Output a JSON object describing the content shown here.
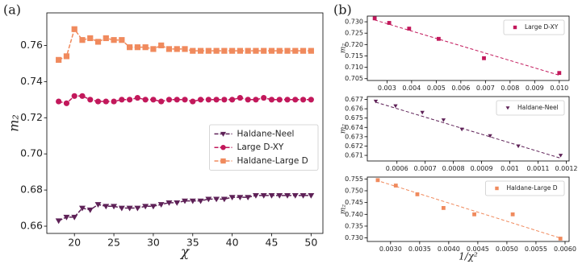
{
  "chart_data": [
    {
      "type": "line",
      "panel_label": "(a)",
      "x_label": "χ",
      "y_label": "m₂",
      "legend": "center right",
      "x": [
        18,
        19,
        20,
        21,
        22,
        23,
        24,
        25,
        26,
        27,
        28,
        29,
        30,
        31,
        32,
        33,
        34,
        35,
        36,
        37,
        38,
        39,
        40,
        41,
        42,
        43,
        44,
        45,
        46,
        47,
        48,
        49,
        50
      ],
      "series": [
        {
          "name": "Haldane-Neel",
          "color": "#5e2157",
          "marker": "triangle-down",
          "values": [
            0.663,
            0.665,
            0.665,
            0.67,
            0.669,
            0.672,
            0.671,
            0.671,
            0.67,
            0.67,
            0.67,
            0.671,
            0.671,
            0.672,
            0.673,
            0.673,
            0.674,
            0.674,
            0.674,
            0.675,
            0.675,
            0.675,
            0.676,
            0.676,
            0.676,
            0.677,
            0.677,
            0.677,
            0.677,
            0.677,
            0.677,
            0.677,
            0.677
          ]
        },
        {
          "name": "Large D-XY",
          "color": "#c2185b",
          "marker": "circle",
          "values": [
            0.729,
            0.728,
            0.732,
            0.732,
            0.73,
            0.729,
            0.729,
            0.729,
            0.73,
            0.73,
            0.731,
            0.73,
            0.73,
            0.729,
            0.73,
            0.73,
            0.73,
            0.729,
            0.73,
            0.73,
            0.73,
            0.73,
            0.73,
            0.731,
            0.73,
            0.73,
            0.731,
            0.73,
            0.73,
            0.73,
            0.73,
            0.73,
            0.73
          ]
        },
        {
          "name": "Haldane-Large D",
          "color": "#f08a5d",
          "marker": "square",
          "values": [
            0.752,
            0.754,
            0.769,
            0.763,
            0.764,
            0.762,
            0.764,
            0.763,
            0.763,
            0.759,
            0.759,
            0.759,
            0.758,
            0.76,
            0.758,
            0.758,
            0.758,
            0.757,
            0.757,
            0.757,
            0.757,
            0.757,
            0.757,
            0.757,
            0.757,
            0.757,
            0.757,
            0.757,
            0.757,
            0.757,
            0.757,
            0.757,
            0.757
          ]
        }
      ],
      "xlim": [
        16.5,
        51.5
      ],
      "xticks": [
        20,
        25,
        30,
        35,
        40,
        45,
        50
      ],
      "ylim": [
        0.656,
        0.778
      ],
      "yticks": [
        0.66,
        0.68,
        {
          "value": 0.7,
          "label": "0.70"
        },
        0.72,
        0.74,
        0.76
      ]
    },
    {
      "type": "scatter",
      "panel_label": "(b)",
      "y_label": "m₂",
      "legend": "upper right",
      "x": [
        0.0025,
        0.00309,
        0.0039,
        0.0051,
        0.00694,
        0.01
      ],
      "series": [
        {
          "name": "Large D-XY",
          "color": "#c2185b",
          "marker": "square",
          "values": [
            0.7315,
            0.7295,
            0.727,
            0.7225,
            0.714,
            0.7075
          ]
        }
      ],
      "fit": {
        "color": "#c2185b",
        "x": [
          0.0025,
          0.01
        ],
        "values": [
          0.7308,
          0.7065
        ]
      },
      "xlim": [
        0.0022,
        0.0104
      ],
      "xticks": [
        0.003,
        0.004,
        0.005,
        0.006,
        0.007,
        0.008,
        0.009,
        {
          "value": 0.01,
          "label": "0.010"
        }
      ],
      "ylim": [
        0.7042,
        0.7325
      ],
      "yticks": [
        0.705,
        {
          "value": 0.71,
          "label": "0.710"
        },
        0.715,
        {
          "value": 0.72,
          "label": "0.720"
        },
        0.725,
        {
          "value": 0.73,
          "label": "0.730"
        }
      ]
    },
    {
      "type": "scatter",
      "y_label": "m₂",
      "legend": "upper right",
      "x": [
        0.000525,
        0.000595,
        0.00069,
        0.000765,
        0.00083,
        0.00093,
        0.00103,
        0.00118
      ],
      "series": [
        {
          "name": "Haldane-Neel",
          "color": "#5e2157",
          "marker": "triangle-down",
          "values": [
            0.6768,
            0.6763,
            0.6756,
            0.6748,
            0.6738,
            0.6731,
            0.672,
            0.671
          ]
        }
      ],
      "fit": {
        "color": "#5e2157",
        "x": [
          0.000525,
          0.00118
        ],
        "values": [
          0.6767,
          0.6707
        ]
      },
      "xlim": [
        0.000495,
        0.00121
      ],
      "xticks": [
        0.0006,
        0.0007,
        0.0008,
        0.0009,
        0.001,
        0.0011,
        0.0012
      ],
      "ylim": [
        0.6704,
        0.6773
      ],
      "yticks": [
        0.671,
        0.672,
        0.673,
        0.674,
        0.675,
        0.676,
        0.677
      ]
    },
    {
      "type": "scatter",
      "x_label": "1/χ²",
      "y_label": "m₂",
      "legend": "upper right",
      "x": [
        0.00278,
        0.00309,
        0.00346,
        0.00391,
        0.00444,
        0.0051,
        0.00592
      ],
      "series": [
        {
          "name": "Haldane-Large D",
          "color": "#f08a5d",
          "marker": "square",
          "values": [
            0.7545,
            0.7522,
            0.7485,
            0.7427,
            0.74,
            0.74,
            0.7297
          ]
        }
      ],
      "fit": {
        "color": "#f08a5d",
        "x": [
          0.00275,
          0.00595
        ],
        "values": [
          0.7545,
          0.7297
        ]
      },
      "xlim": [
        0.0026,
        0.00607
      ],
      "xticks": [
        {
          "value": 0.003,
          "label": "0.0030"
        },
        0.0035,
        {
          "value": 0.004,
          "label": "0.0040"
        },
        0.0045,
        {
          "value": 0.005,
          "label": "0.0050"
        },
        0.0055,
        {
          "value": 0.006,
          "label": "0.0060"
        }
      ],
      "ylim": [
        0.7285,
        0.7558
      ],
      "yticks": [
        {
          "value": 0.73,
          "label": "0.730"
        },
        0.735,
        {
          "value": 0.74,
          "label": "0.740"
        },
        0.745,
        {
          "value": 0.75,
          "label": "0.750"
        },
        0.755
      ]
    }
  ]
}
